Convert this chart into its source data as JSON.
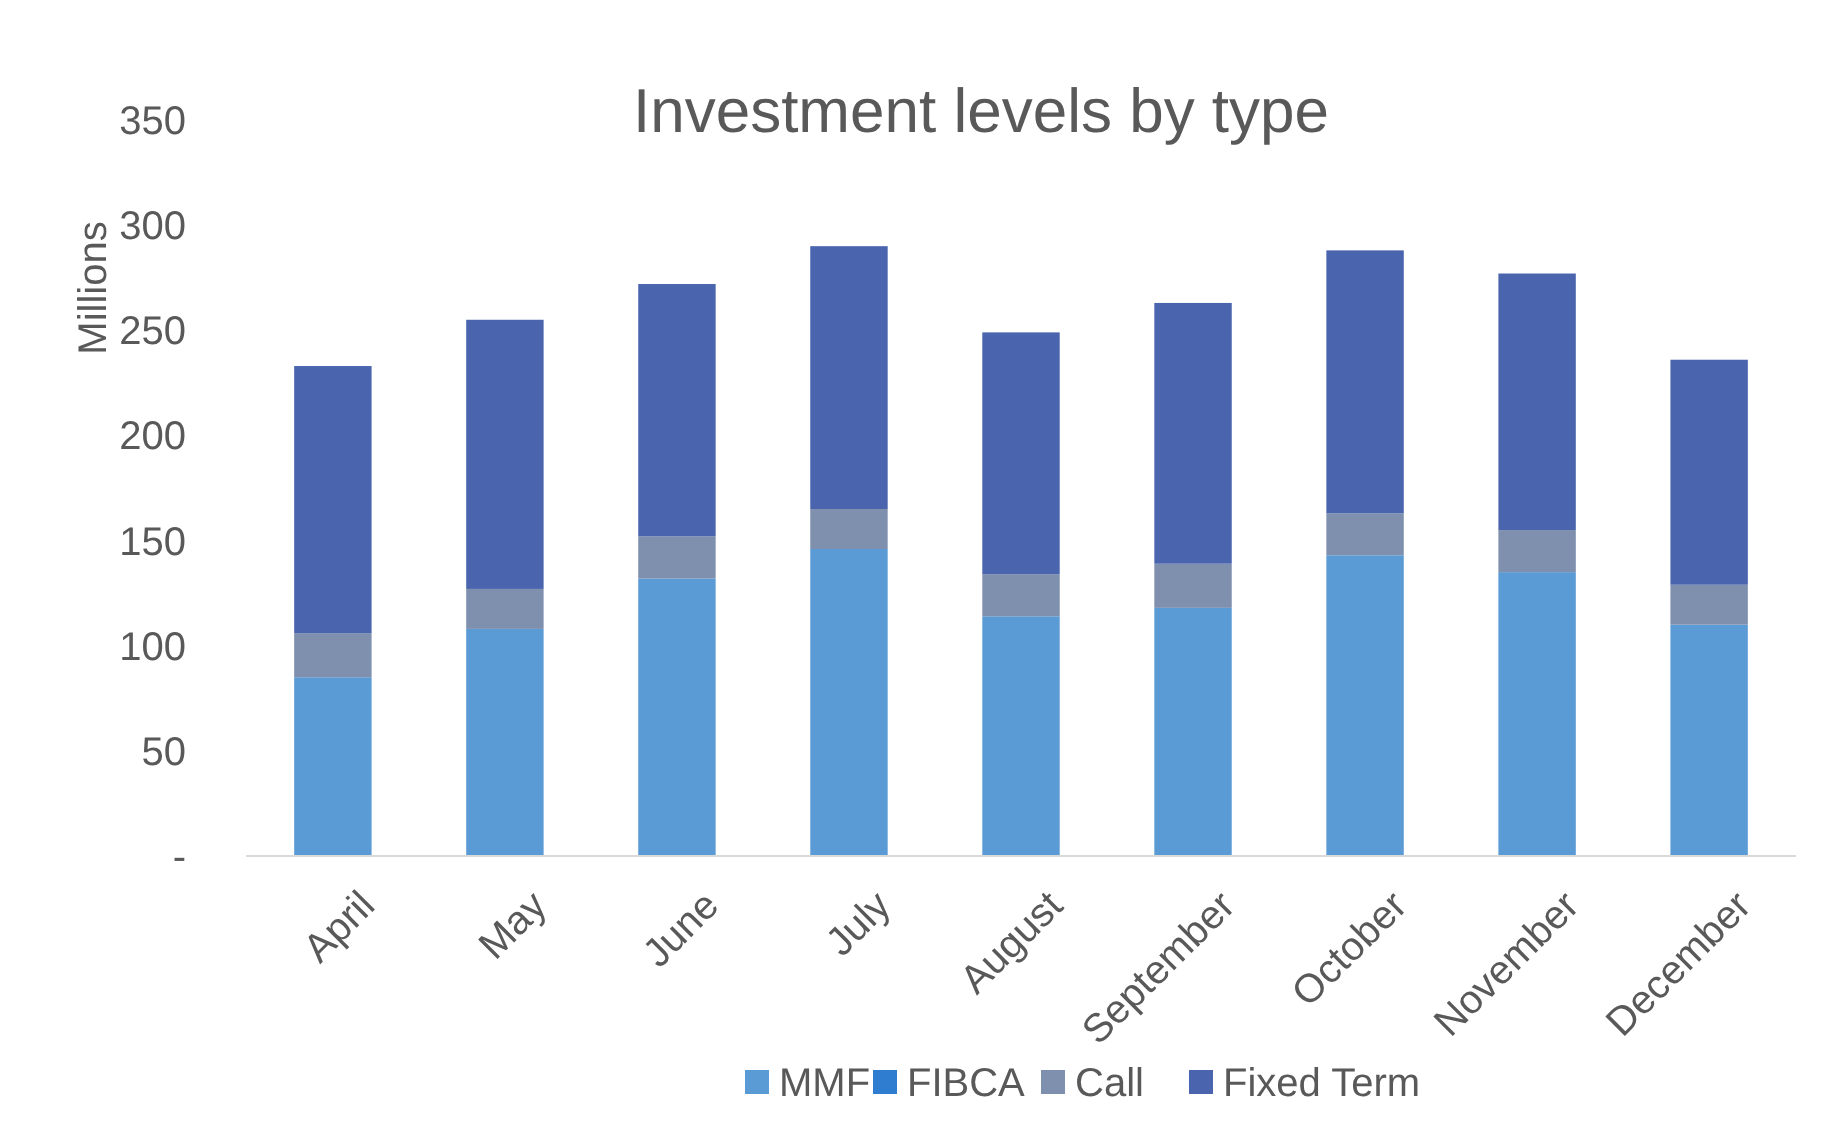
{
  "chart_data": {
    "type": "bar",
    "title": "Investment levels by type",
    "ylabel": "Millions",
    "stacked": true,
    "legend": "bottom",
    "grid": false,
    "categories": [
      "April",
      "May",
      "June",
      "July",
      "August",
      "September",
      "October",
      "November",
      "December"
    ],
    "ylim": [
      0,
      350
    ],
    "yticks": [
      {
        "value": 0,
        "label": "-"
      },
      50,
      100,
      150,
      200,
      250,
      300,
      350
    ],
    "series": [
      {
        "name": "MMF",
        "color": "#5b9bd5",
        "values": [
          85,
          108,
          132,
          146,
          114,
          118,
          143,
          135,
          110
        ]
      },
      {
        "name": "FIBCA",
        "color": "#2e7dd1",
        "values": [
          0,
          0,
          0,
          0,
          0,
          0,
          0,
          0,
          0
        ]
      },
      {
        "name": "Call",
        "color": "#7f8fae",
        "values": [
          21,
          19,
          20,
          19,
          20,
          21,
          20,
          20,
          19
        ]
      },
      {
        "name": "Fixed Term",
        "color": "#4a65ae",
        "values": [
          127,
          128,
          120,
          125,
          115,
          124,
          125,
          122,
          107
        ]
      }
    ]
  }
}
